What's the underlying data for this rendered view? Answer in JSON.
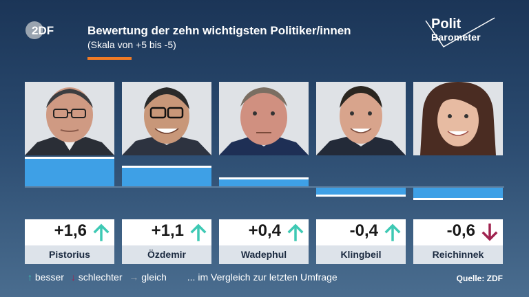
{
  "header": {
    "title": "Bewertung der zehn wichtigsten Politiker/innen",
    "subtitle": "(Skala von +5 bis -5)",
    "accent_color": "#f07b25"
  },
  "brand": {
    "zdf_logo_text": "2DF",
    "polit_line1": "Polit",
    "polit_line2": "Barometer"
  },
  "politicians": [
    {
      "name": "Pistorius",
      "value": "+1,6",
      "trend": "up"
    },
    {
      "name": "Özdemir",
      "value": "+1,1",
      "trend": "up"
    },
    {
      "name": "Wadephul",
      "value": "+0,4",
      "trend": "up"
    },
    {
      "name": "Klingbeil",
      "value": "-0,4",
      "trend": "up"
    },
    {
      "name": "Reichinnek",
      "value": "-0,6",
      "trend": "down"
    }
  ],
  "legend": {
    "up_label": "besser",
    "down_label": "schlechter",
    "same_label": "gleich",
    "note": "... im Vergleich zur letzten Umfrage"
  },
  "source": "Quelle: ZDF",
  "colors": {
    "bar": "#3ea0e6",
    "up_arrow": "#3ec9b4",
    "down_arrow": "#a0234f",
    "same_arrow": "#9aa6b2"
  },
  "chart_data": {
    "type": "bar",
    "categories": [
      "Pistorius",
      "Özdemir",
      "Wadephul",
      "Klingbeil",
      "Reichinnek"
    ],
    "values": [
      1.6,
      1.1,
      0.4,
      -0.4,
      -0.6
    ],
    "title": "Bewertung der zehn wichtigsten Politiker/innen",
    "subtitle": "(Skala von +5 bis -5)",
    "ylim": [
      -5,
      5
    ]
  }
}
